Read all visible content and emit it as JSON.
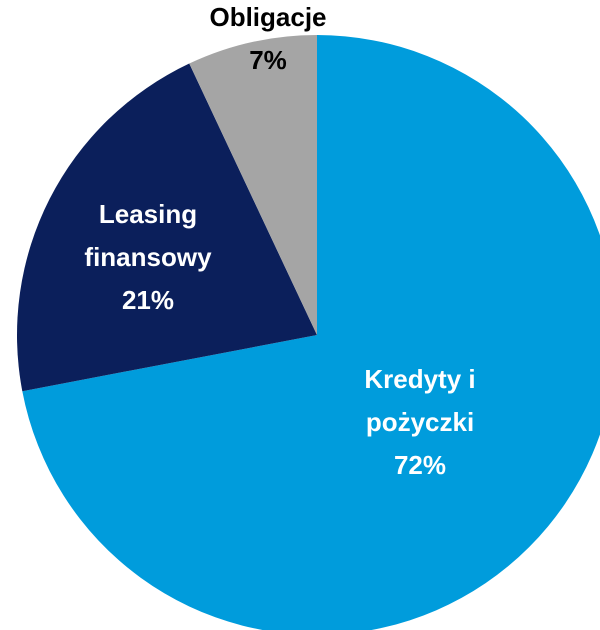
{
  "chart_data": {
    "type": "pie",
    "categories": [
      "Kredyty i pożyczki",
      "Leasing finansowy",
      "Obligacje"
    ],
    "values": [
      72,
      21,
      7
    ],
    "value_labels": [
      "72%",
      "21%",
      "7%"
    ],
    "colors": [
      "#009cdc",
      "#0b1f5b",
      "#a5a5a5"
    ]
  }
}
